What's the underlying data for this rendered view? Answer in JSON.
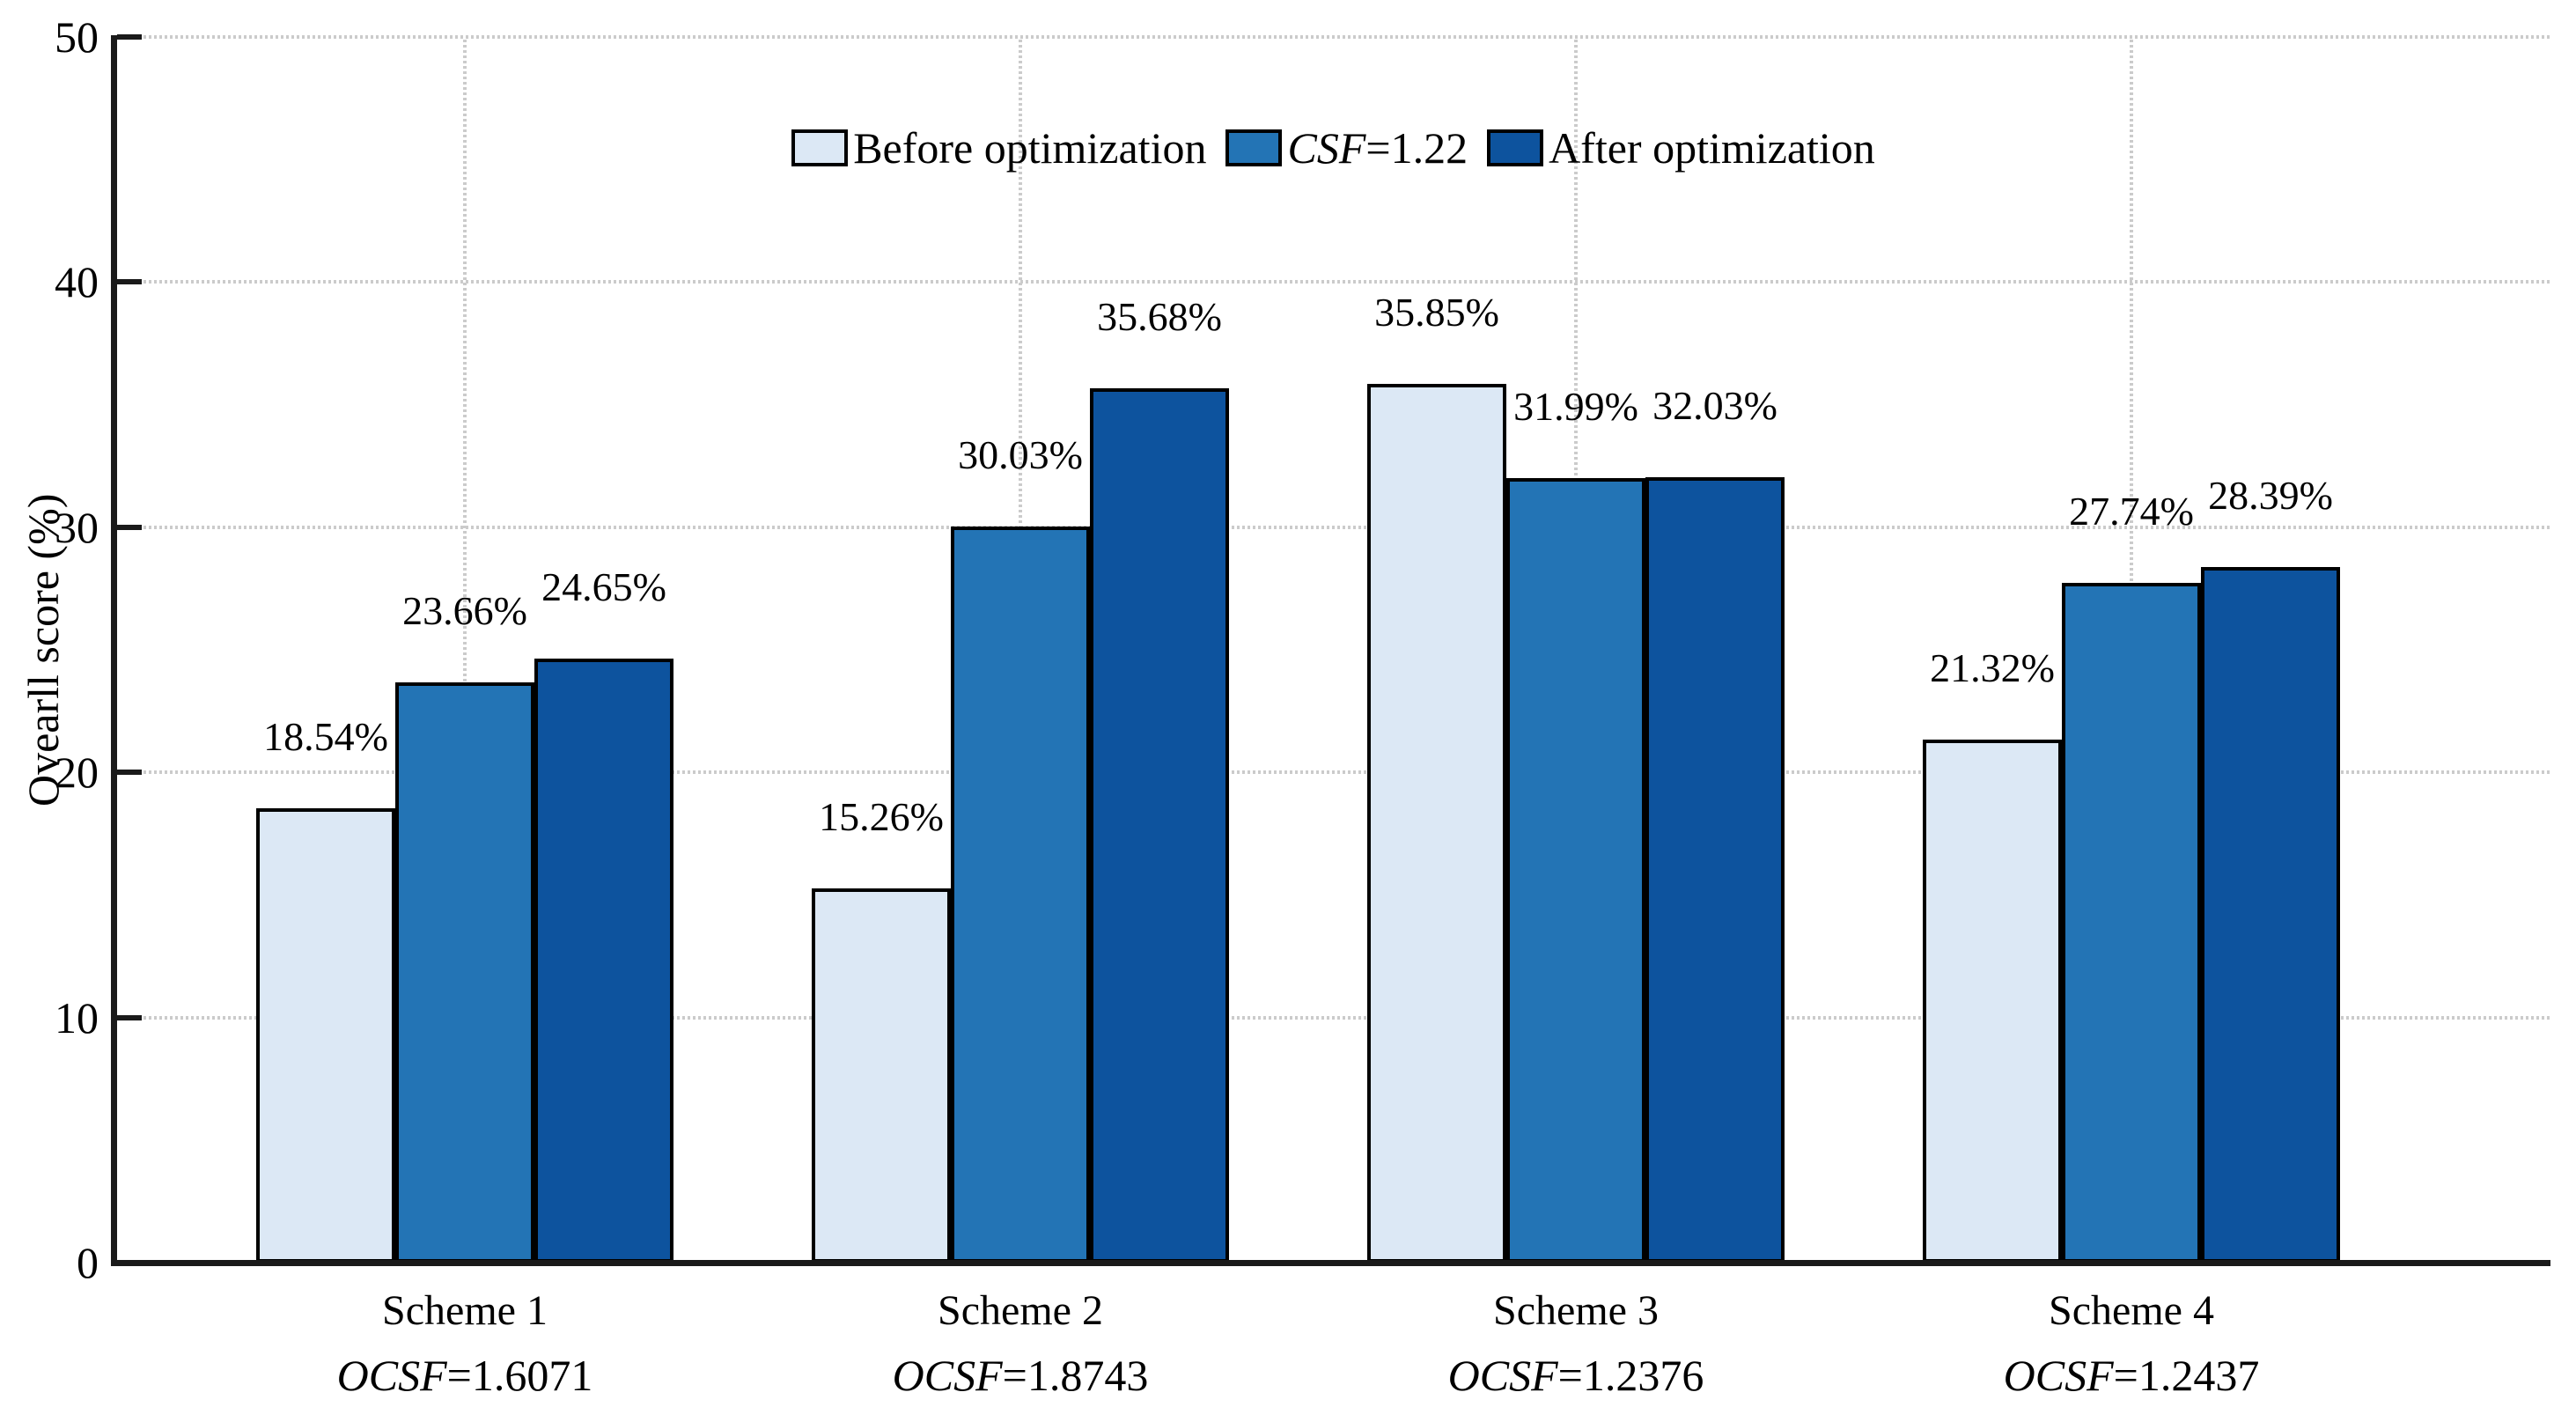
{
  "chart_data": {
    "type": "bar",
    "title": "",
    "xlabel": "",
    "ylabel": "Ovearll score (%)",
    "ylim": [
      0,
      50
    ],
    "yticks": [
      0,
      10,
      20,
      30,
      40,
      50
    ],
    "ytick_labels": [
      "0",
      "10",
      "20",
      "30",
      "40",
      "50"
    ],
    "grid": true,
    "gridline_color": "#cbcbcb",
    "axis_color": "#1a1a1a",
    "legend_position": "top-center",
    "categories": [
      "Scheme 1",
      "Scheme 2",
      "Scheme 3",
      "Scheme 4"
    ],
    "category_sublabels": [
      {
        "text": "OCSF=1.6071",
        "parts": [
          {
            "text": "OCSF",
            "italic": true
          },
          {
            "text": "=1.6071",
            "italic": false
          }
        ]
      },
      {
        "text": "OCSF=1.8743",
        "parts": [
          {
            "text": "OCSF",
            "italic": true
          },
          {
            "text": "=1.8743",
            "italic": false
          }
        ]
      },
      {
        "text": "OCSF=1.2376",
        "parts": [
          {
            "text": "OCSF",
            "italic": true
          },
          {
            "text": "=1.2376",
            "italic": false
          }
        ]
      },
      {
        "text": "OCSF=1.2437",
        "parts": [
          {
            "text": "OCSF",
            "italic": true
          },
          {
            "text": "=1.2437",
            "italic": false
          }
        ]
      }
    ],
    "series": [
      {
        "name": "Before optimization",
        "name_parts": [
          {
            "text": "Before optimization",
            "italic": false
          }
        ],
        "color": "#dce8f5",
        "border_color": "#000000",
        "values": [
          18.54,
          15.26,
          35.85,
          21.32
        ],
        "labels": [
          "18.54%",
          "15.26%",
          "35.85%",
          "21.32%"
        ]
      },
      {
        "name": "CSF=1.22",
        "name_parts": [
          {
            "text": "CSF",
            "italic": true
          },
          {
            "text": "=1.22",
            "italic": false
          }
        ],
        "color": "#2374b5",
        "border_color": "#000000",
        "values": [
          23.66,
          30.03,
          31.99,
          27.74
        ],
        "labels": [
          "23.66%",
          "30.03%",
          "31.99%",
          "27.74%"
        ]
      },
      {
        "name": "After optimization",
        "name_parts": [
          {
            "text": "After optimization",
            "italic": false
          }
        ],
        "color": "#0d539e",
        "border_color": "#000000",
        "values": [
          24.65,
          35.68,
          32.03,
          28.39
        ],
        "labels": [
          "24.65%",
          "35.68%",
          "32.03%",
          "28.39%"
        ]
      }
    ]
  }
}
